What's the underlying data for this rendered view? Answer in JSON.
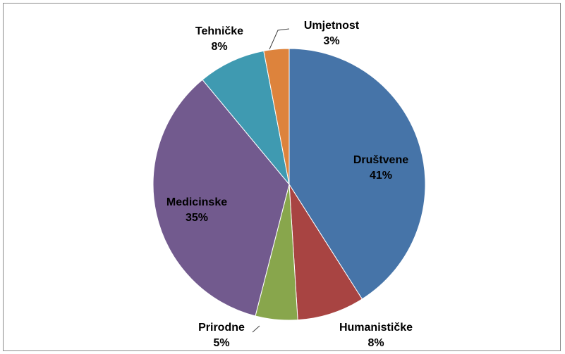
{
  "chart_data": {
    "type": "pie",
    "title": "",
    "start_angle_deg": 0,
    "direction": "clockwise",
    "slices": [
      {
        "label": "Društvene",
        "value": 41,
        "value_label": "41%",
        "color": "#4674A8"
      },
      {
        "label": "Humanističke",
        "value": 8,
        "value_label": "8%",
        "color": "#A84442"
      },
      {
        "label": "Prirodne",
        "value": 5,
        "value_label": "5%",
        "color": "#88A64C"
      },
      {
        "label": "Medicinske",
        "value": 35,
        "value_label": "35%",
        "color": "#725A8E"
      },
      {
        "label": "Tehničke",
        "value": 8,
        "value_label": "8%",
        "color": "#3F9AB1"
      },
      {
        "label": "Umjetnost",
        "value": 3,
        "value_label": "3%",
        "color": "#DD833C"
      }
    ],
    "legend": "none"
  }
}
